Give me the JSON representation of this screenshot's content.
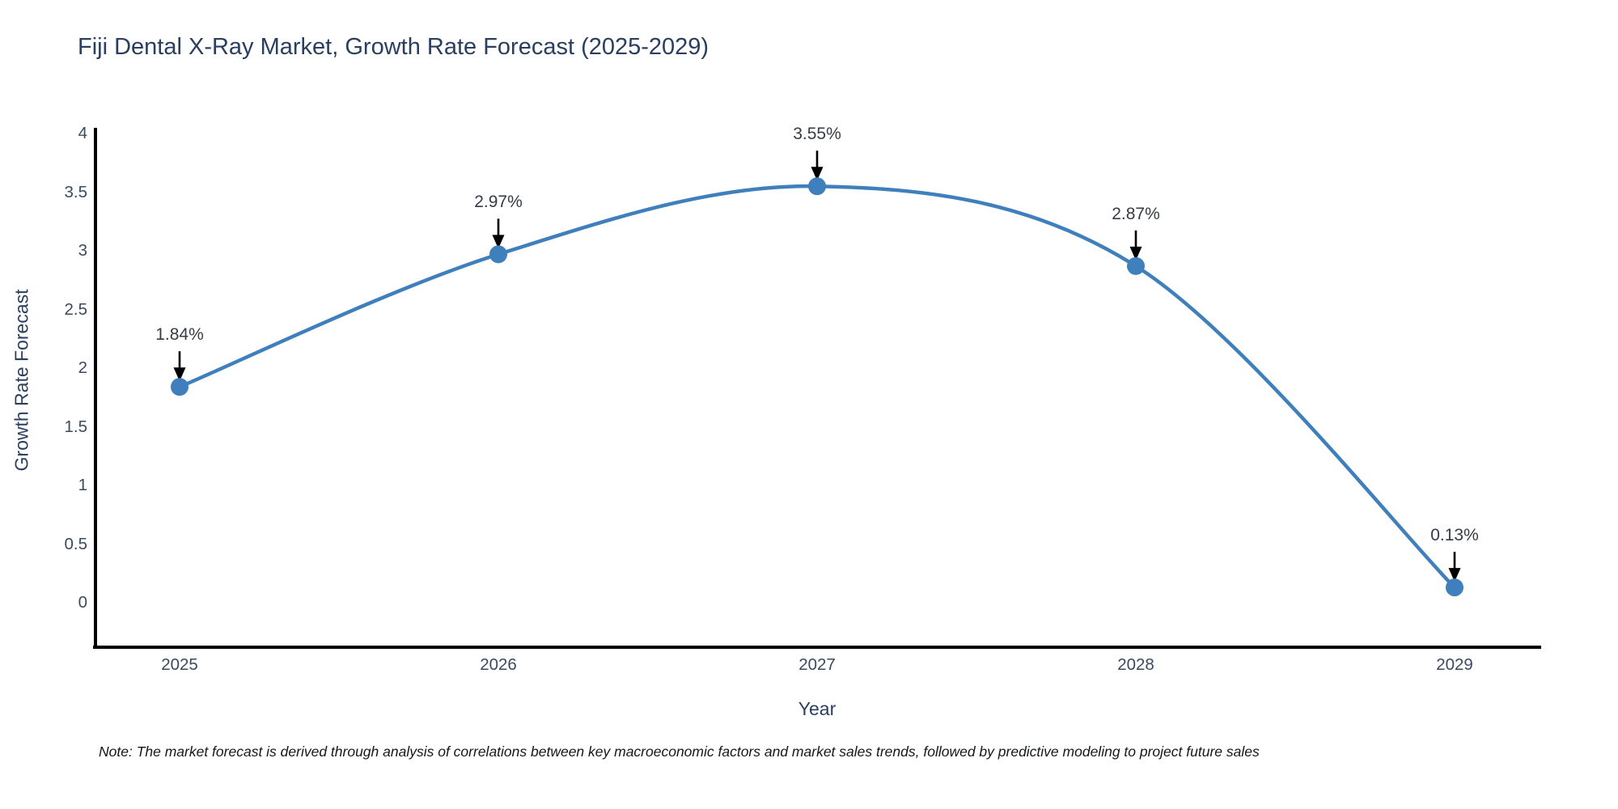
{
  "page": {
    "title": "Fiji Dental X-Ray Market, Growth Rate Forecast (2025-2029)",
    "footnote": "Note: The market forecast is derived through analysis of correlations between key macroeconomic factors and market sales trends, followed by predictive modeling to project future sales"
  },
  "chart_data": {
    "type": "line",
    "title": "Fiji Dental X-Ray Market, Growth Rate Forecast (2025-2029)",
    "xlabel": "Year",
    "ylabel": "Growth Rate Forecast",
    "x": [
      2025,
      2026,
      2027,
      2028,
      2029
    ],
    "series": [
      {
        "name": "Growth Rate Forecast",
        "values": [
          1.84,
          2.97,
          3.55,
          2.87,
          0.13
        ]
      }
    ],
    "point_labels": [
      "1.84%",
      "2.97%",
      "3.55%",
      "2.87%",
      "0.13%"
    ],
    "ylim": [
      0,
      4
    ],
    "yticks": [
      0,
      0.5,
      1,
      1.5,
      2,
      2.5,
      3,
      3.5,
      4
    ],
    "xticks": [
      "2025",
      "2026",
      "2027",
      "2028",
      "2029"
    ],
    "grid": false,
    "legend": "none",
    "line_shape": "spline",
    "marker": "circle",
    "annotation_style": "value label above each point with downward black arrow",
    "colors": {
      "line": "#3f7fbc",
      "marker": "#3f7fbc",
      "arrow": "#000000",
      "axis": "#000000",
      "title_text": "#2a3f5f",
      "tick_text": "#3b4a5f",
      "annotation_text": "#363c45",
      "note_text": "#15181c",
      "background": "#ffffff"
    }
  }
}
